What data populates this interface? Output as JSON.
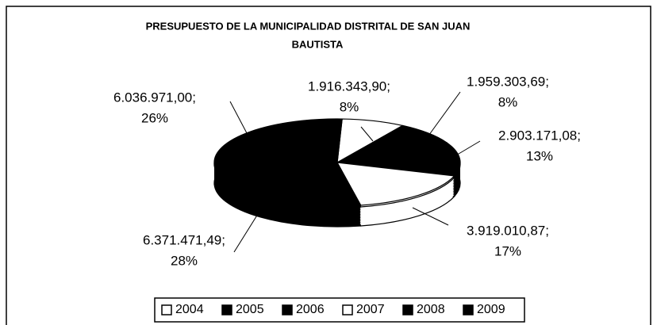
{
  "chart_data": {
    "type": "pie",
    "title": [
      "PRESUPUESTO DE LA MUNICIPALIDAD DISTRITAL DE SAN JUAN",
      "BAUTISTA"
    ],
    "categories": [
      "2004",
      "2005",
      "2006",
      "2007",
      "2008",
      "2009"
    ],
    "values": [
      1916343.9,
      1959303.69,
      2903171.08,
      3919010.87,
      6371471.49,
      6036971.0
    ],
    "value_labels": [
      "1.916.343,90;",
      "1.959.303,69;",
      "2.903.171,08;",
      "3.919.010,87;",
      "6.371.471,49;",
      "6.036.971,00;"
    ],
    "percent_labels": [
      "8%",
      "8%",
      "13%",
      "17%",
      "28%",
      "26%"
    ],
    "colors": [
      "#ffffff",
      "#000000",
      "#000000",
      "#ffffff",
      "#000000",
      "#000000"
    ],
    "legend": "bottom"
  }
}
